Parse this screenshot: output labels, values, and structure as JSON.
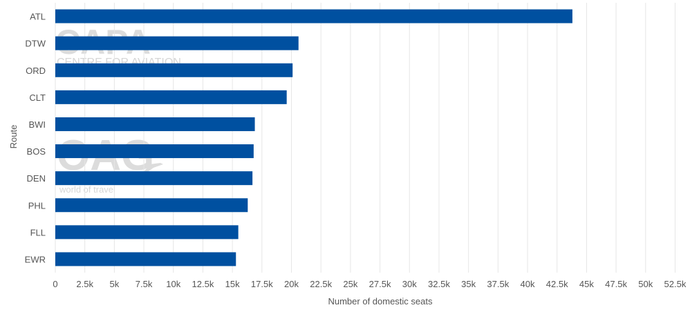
{
  "chart_data": {
    "type": "bar",
    "orientation": "horizontal",
    "categories": [
      "ATL",
      "DTW",
      "ORD",
      "CLT",
      "BWI",
      "BOS",
      "DEN",
      "PHL",
      "FLL",
      "EWR"
    ],
    "values": [
      43800,
      20600,
      20100,
      19600,
      16900,
      16800,
      16700,
      16300,
      15500,
      15300
    ],
    "title": "",
    "xlabel": "Number of domestic seats",
    "ylabel": "Route",
    "xlim": [
      0,
      53000
    ],
    "xtick_values": [
      0,
      2500,
      5000,
      7500,
      10000,
      12500,
      15000,
      17500,
      20000,
      22500,
      25000,
      27500,
      30000,
      32500,
      35000,
      37500,
      40000,
      42500,
      45000,
      47500,
      50000,
      52500
    ],
    "xtick_labels": [
      "0",
      "2.5k",
      "5k",
      "7.5k",
      "10k",
      "12.5k",
      "15k",
      "17.5k",
      "20k",
      "22.5k",
      "25k",
      "27.5k",
      "30k",
      "32.5k",
      "35k",
      "37.5k",
      "40k",
      "42.5k",
      "45k",
      "47.5k",
      "50k",
      "52.5k"
    ],
    "grid": "vertical",
    "legend": "none",
    "bar_color": "#0050a0",
    "grid_color": "#e6e6e6"
  },
  "watermarks": {
    "capa_logo": "CAPA",
    "capa_tagline": "CENTRE FOR AVIATION",
    "oag_logo": "OAG",
    "oag_tagline": "world of travel"
  }
}
